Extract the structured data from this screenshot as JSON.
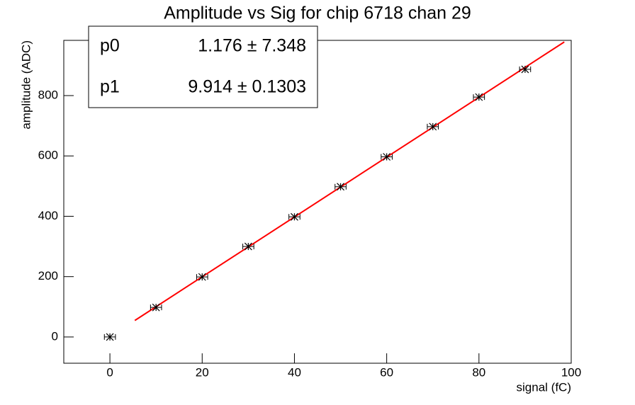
{
  "chart_data": {
    "type": "scatter",
    "title": "Amplitude vs Sig for chip 6718 chan 29",
    "x_label": "signal (fC)",
    "y_label": "amplitude (ADC)",
    "x": [
      0,
      10,
      20,
      30,
      40,
      50,
      60,
      70,
      80,
      90
    ],
    "series": [
      {
        "name": "amplitude",
        "color": "#000000",
        "values": [
          0,
          98,
          199,
          300,
          398,
          498,
          597,
          697,
          795,
          887
        ],
        "x_errors": [
          1.2,
          1.2,
          1.2,
          1.2,
          1.2,
          1.2,
          1.2,
          1.2,
          1.2,
          1.2
        ]
      }
    ],
    "fit": {
      "x": [
        5.4,
        98.5
      ],
      "y": [
        54.7,
        977.7
      ],
      "color": "#ff0000"
    },
    "xlim": [
      -10,
      100
    ],
    "ylim": [
      -87,
      983
    ],
    "xticks": [
      0,
      20,
      40,
      60,
      80,
      100
    ],
    "yticks": [
      0,
      200,
      400,
      600,
      800
    ],
    "stats": [
      {
        "name": "p0",
        "label": "1.176 ± 7.348"
      },
      {
        "name": "p1",
        "label": "9.914 ± 0.1303"
      }
    ]
  }
}
